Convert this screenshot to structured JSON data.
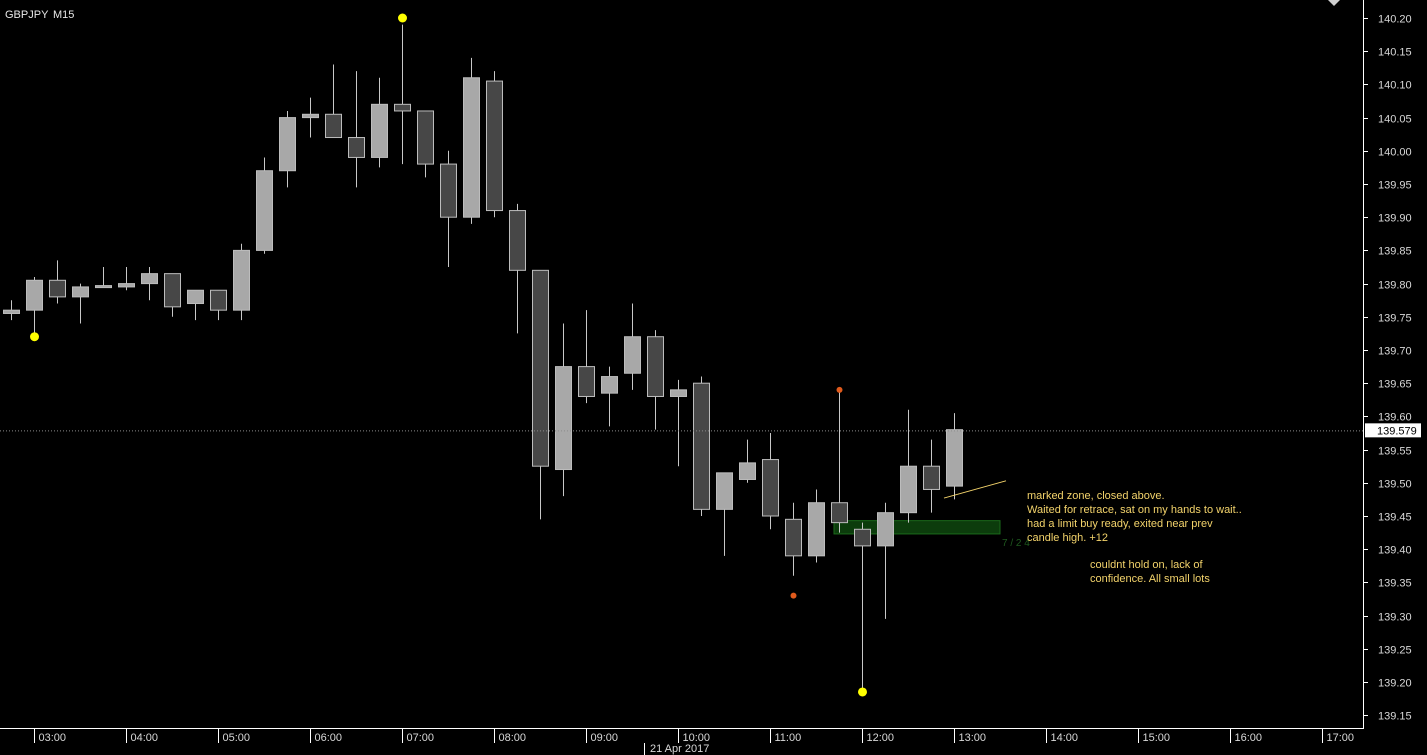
{
  "window": {
    "symbol": "GBPJPY",
    "timeframe": "M15"
  },
  "chart_data": {
    "type": "candlestick",
    "symbol": "GBPJPY",
    "timeframe": "M15",
    "date_label": "21 Apr 2017",
    "ylim": [
      139.13,
      140.23
    ],
    "y_ticks": [
      "140.20",
      "140.15",
      "140.10",
      "140.05",
      "140.00",
      "139.95",
      "139.90",
      "139.85",
      "139.80",
      "139.75",
      "139.70",
      "139.65",
      "139.60",
      "139.55",
      "139.50",
      "139.45",
      "139.40",
      "139.35",
      "139.30",
      "139.25",
      "139.20",
      "139.15"
    ],
    "x_ticks": [
      "03:00",
      "04:00",
      "05:00",
      "06:00",
      "07:00",
      "08:00",
      "09:00",
      "10:00",
      "11:00",
      "12:00",
      "13:00",
      "14:00",
      "15:00",
      "16:00",
      "17:00"
    ],
    "current_price": "139.579",
    "candles": [
      {
        "time": "02:45",
        "o": 139.755,
        "h": 139.775,
        "l": 139.745,
        "c": 139.76
      },
      {
        "time": "03:00",
        "o": 139.76,
        "h": 139.81,
        "l": 139.725,
        "c": 139.805
      },
      {
        "time": "03:15",
        "o": 139.805,
        "h": 139.835,
        "l": 139.77,
        "c": 139.78
      },
      {
        "time": "03:30",
        "o": 139.78,
        "h": 139.8,
        "l": 139.74,
        "c": 139.795
      },
      {
        "time": "03:45",
        "o": 139.795,
        "h": 139.825,
        "l": 139.795,
        "c": 139.797
      },
      {
        "time": "04:00",
        "o": 139.795,
        "h": 139.825,
        "l": 139.79,
        "c": 139.8
      },
      {
        "time": "04:15",
        "o": 139.8,
        "h": 139.825,
        "l": 139.775,
        "c": 139.815
      },
      {
        "time": "04:30",
        "o": 139.815,
        "h": 139.815,
        "l": 139.75,
        "c": 139.765
      },
      {
        "time": "04:45",
        "o": 139.77,
        "h": 139.79,
        "l": 139.745,
        "c": 139.79
      },
      {
        "time": "05:00",
        "o": 139.79,
        "h": 139.79,
        "l": 139.745,
        "c": 139.76
      },
      {
        "time": "05:15",
        "o": 139.76,
        "h": 139.86,
        "l": 139.745,
        "c": 139.85
      },
      {
        "time": "05:30",
        "o": 139.85,
        "h": 139.99,
        "l": 139.845,
        "c": 139.97
      },
      {
        "time": "05:45",
        "o": 139.97,
        "h": 140.06,
        "l": 139.945,
        "c": 140.05
      },
      {
        "time": "06:00",
        "o": 140.05,
        "h": 140.08,
        "l": 140.02,
        "c": 140.055
      },
      {
        "time": "06:15",
        "o": 140.055,
        "h": 140.13,
        "l": 140.02,
        "c": 140.02
      },
      {
        "time": "06:30",
        "o": 140.02,
        "h": 140.12,
        "l": 139.945,
        "c": 139.99
      },
      {
        "time": "06:45",
        "o": 139.99,
        "h": 140.11,
        "l": 139.975,
        "c": 140.07
      },
      {
        "time": "07:00",
        "o": 140.07,
        "h": 140.19,
        "l": 139.98,
        "c": 140.06
      },
      {
        "time": "07:15",
        "o": 140.06,
        "h": 140.06,
        "l": 139.96,
        "c": 139.98
      },
      {
        "time": "07:30",
        "o": 139.98,
        "h": 140.0,
        "l": 139.825,
        "c": 139.9
      },
      {
        "time": "07:45",
        "o": 139.9,
        "h": 140.14,
        "l": 139.89,
        "c": 140.11
      },
      {
        "time": "08:00",
        "o": 140.105,
        "h": 140.12,
        "l": 139.9,
        "c": 139.91
      },
      {
        "time": "08:15",
        "o": 139.91,
        "h": 139.92,
        "l": 139.725,
        "c": 139.82
      },
      {
        "time": "08:30",
        "o": 139.82,
        "h": 139.82,
        "l": 139.445,
        "c": 139.525
      },
      {
        "time": "08:45",
        "o": 139.52,
        "h": 139.74,
        "l": 139.48,
        "c": 139.675
      },
      {
        "time": "09:00",
        "o": 139.675,
        "h": 139.76,
        "l": 139.62,
        "c": 139.63
      },
      {
        "time": "09:15",
        "o": 139.635,
        "h": 139.675,
        "l": 139.585,
        "c": 139.66
      },
      {
        "time": "09:30",
        "o": 139.665,
        "h": 139.77,
        "l": 139.64,
        "c": 139.72
      },
      {
        "time": "09:45",
        "o": 139.72,
        "h": 139.73,
        "l": 139.58,
        "c": 139.63
      },
      {
        "time": "10:00",
        "o": 139.63,
        "h": 139.655,
        "l": 139.525,
        "c": 139.64
      },
      {
        "time": "10:15",
        "o": 139.65,
        "h": 139.66,
        "l": 139.45,
        "c": 139.46
      },
      {
        "time": "10:30",
        "o": 139.46,
        "h": 139.515,
        "l": 139.39,
        "c": 139.515
      },
      {
        "time": "10:45",
        "o": 139.505,
        "h": 139.565,
        "l": 139.5,
        "c": 139.53
      },
      {
        "time": "11:00",
        "o": 139.535,
        "h": 139.575,
        "l": 139.43,
        "c": 139.45
      },
      {
        "time": "11:15",
        "o": 139.445,
        "h": 139.47,
        "l": 139.36,
        "c": 139.39
      },
      {
        "time": "11:30",
        "o": 139.39,
        "h": 139.49,
        "l": 139.38,
        "c": 139.47
      },
      {
        "time": "11:45",
        "o": 139.47,
        "h": 139.64,
        "l": 139.425,
        "c": 139.44
      },
      {
        "time": "12:00",
        "o": 139.43,
        "h": 139.44,
        "l": 139.19,
        "c": 139.405
      },
      {
        "time": "12:15",
        "o": 139.405,
        "h": 139.47,
        "l": 139.295,
        "c": 139.455
      },
      {
        "time": "12:30",
        "o": 139.455,
        "h": 139.61,
        "l": 139.44,
        "c": 139.525
      },
      {
        "time": "12:45",
        "o": 139.525,
        "h": 139.565,
        "l": 139.455,
        "c": 139.49
      },
      {
        "time": "13:00",
        "o": 139.495,
        "h": 139.605,
        "l": 139.475,
        "c": 139.58
      }
    ],
    "markers": [
      {
        "time": "03:00",
        "price": 139.72,
        "color": "#ffff00"
      },
      {
        "time": "07:00",
        "price": 140.2,
        "color": "#ffff00"
      },
      {
        "time": "11:15",
        "price": 139.33,
        "color": "#e05a1c"
      },
      {
        "time": "11:45",
        "price": 139.64,
        "color": "#e05a1c"
      },
      {
        "time": "12:00",
        "price": 139.185,
        "color": "#ffff00"
      }
    ],
    "zone": {
      "time_start": "11:45",
      "time_end": "13:30",
      "price_top": 139.443,
      "price_bottom": 139.423,
      "label": "7 / 2 4"
    },
    "trendline": {
      "time_start": "12:45",
      "price_start": 139.477,
      "time_end": "13:30",
      "price_end": 139.503
    },
    "annotations": [
      {
        "lines": [
          "marked zone, closed above.",
          "Waited for retrace, sat on my hands to wait..",
          "had a limit buy ready, exited near prev",
          "candle high. +12"
        ]
      },
      {
        "lines": [
          "couldnt hold on, lack of",
          "confidence. All small lots"
        ]
      }
    ],
    "colors": {
      "background": "#000000",
      "bull": "#a8a8a8",
      "bear": "#474747",
      "wick": "#c8c8c8",
      "grid_axis": "#ffffff",
      "annotation": "#f3d36b",
      "zone": "#0c3c0c"
    }
  }
}
